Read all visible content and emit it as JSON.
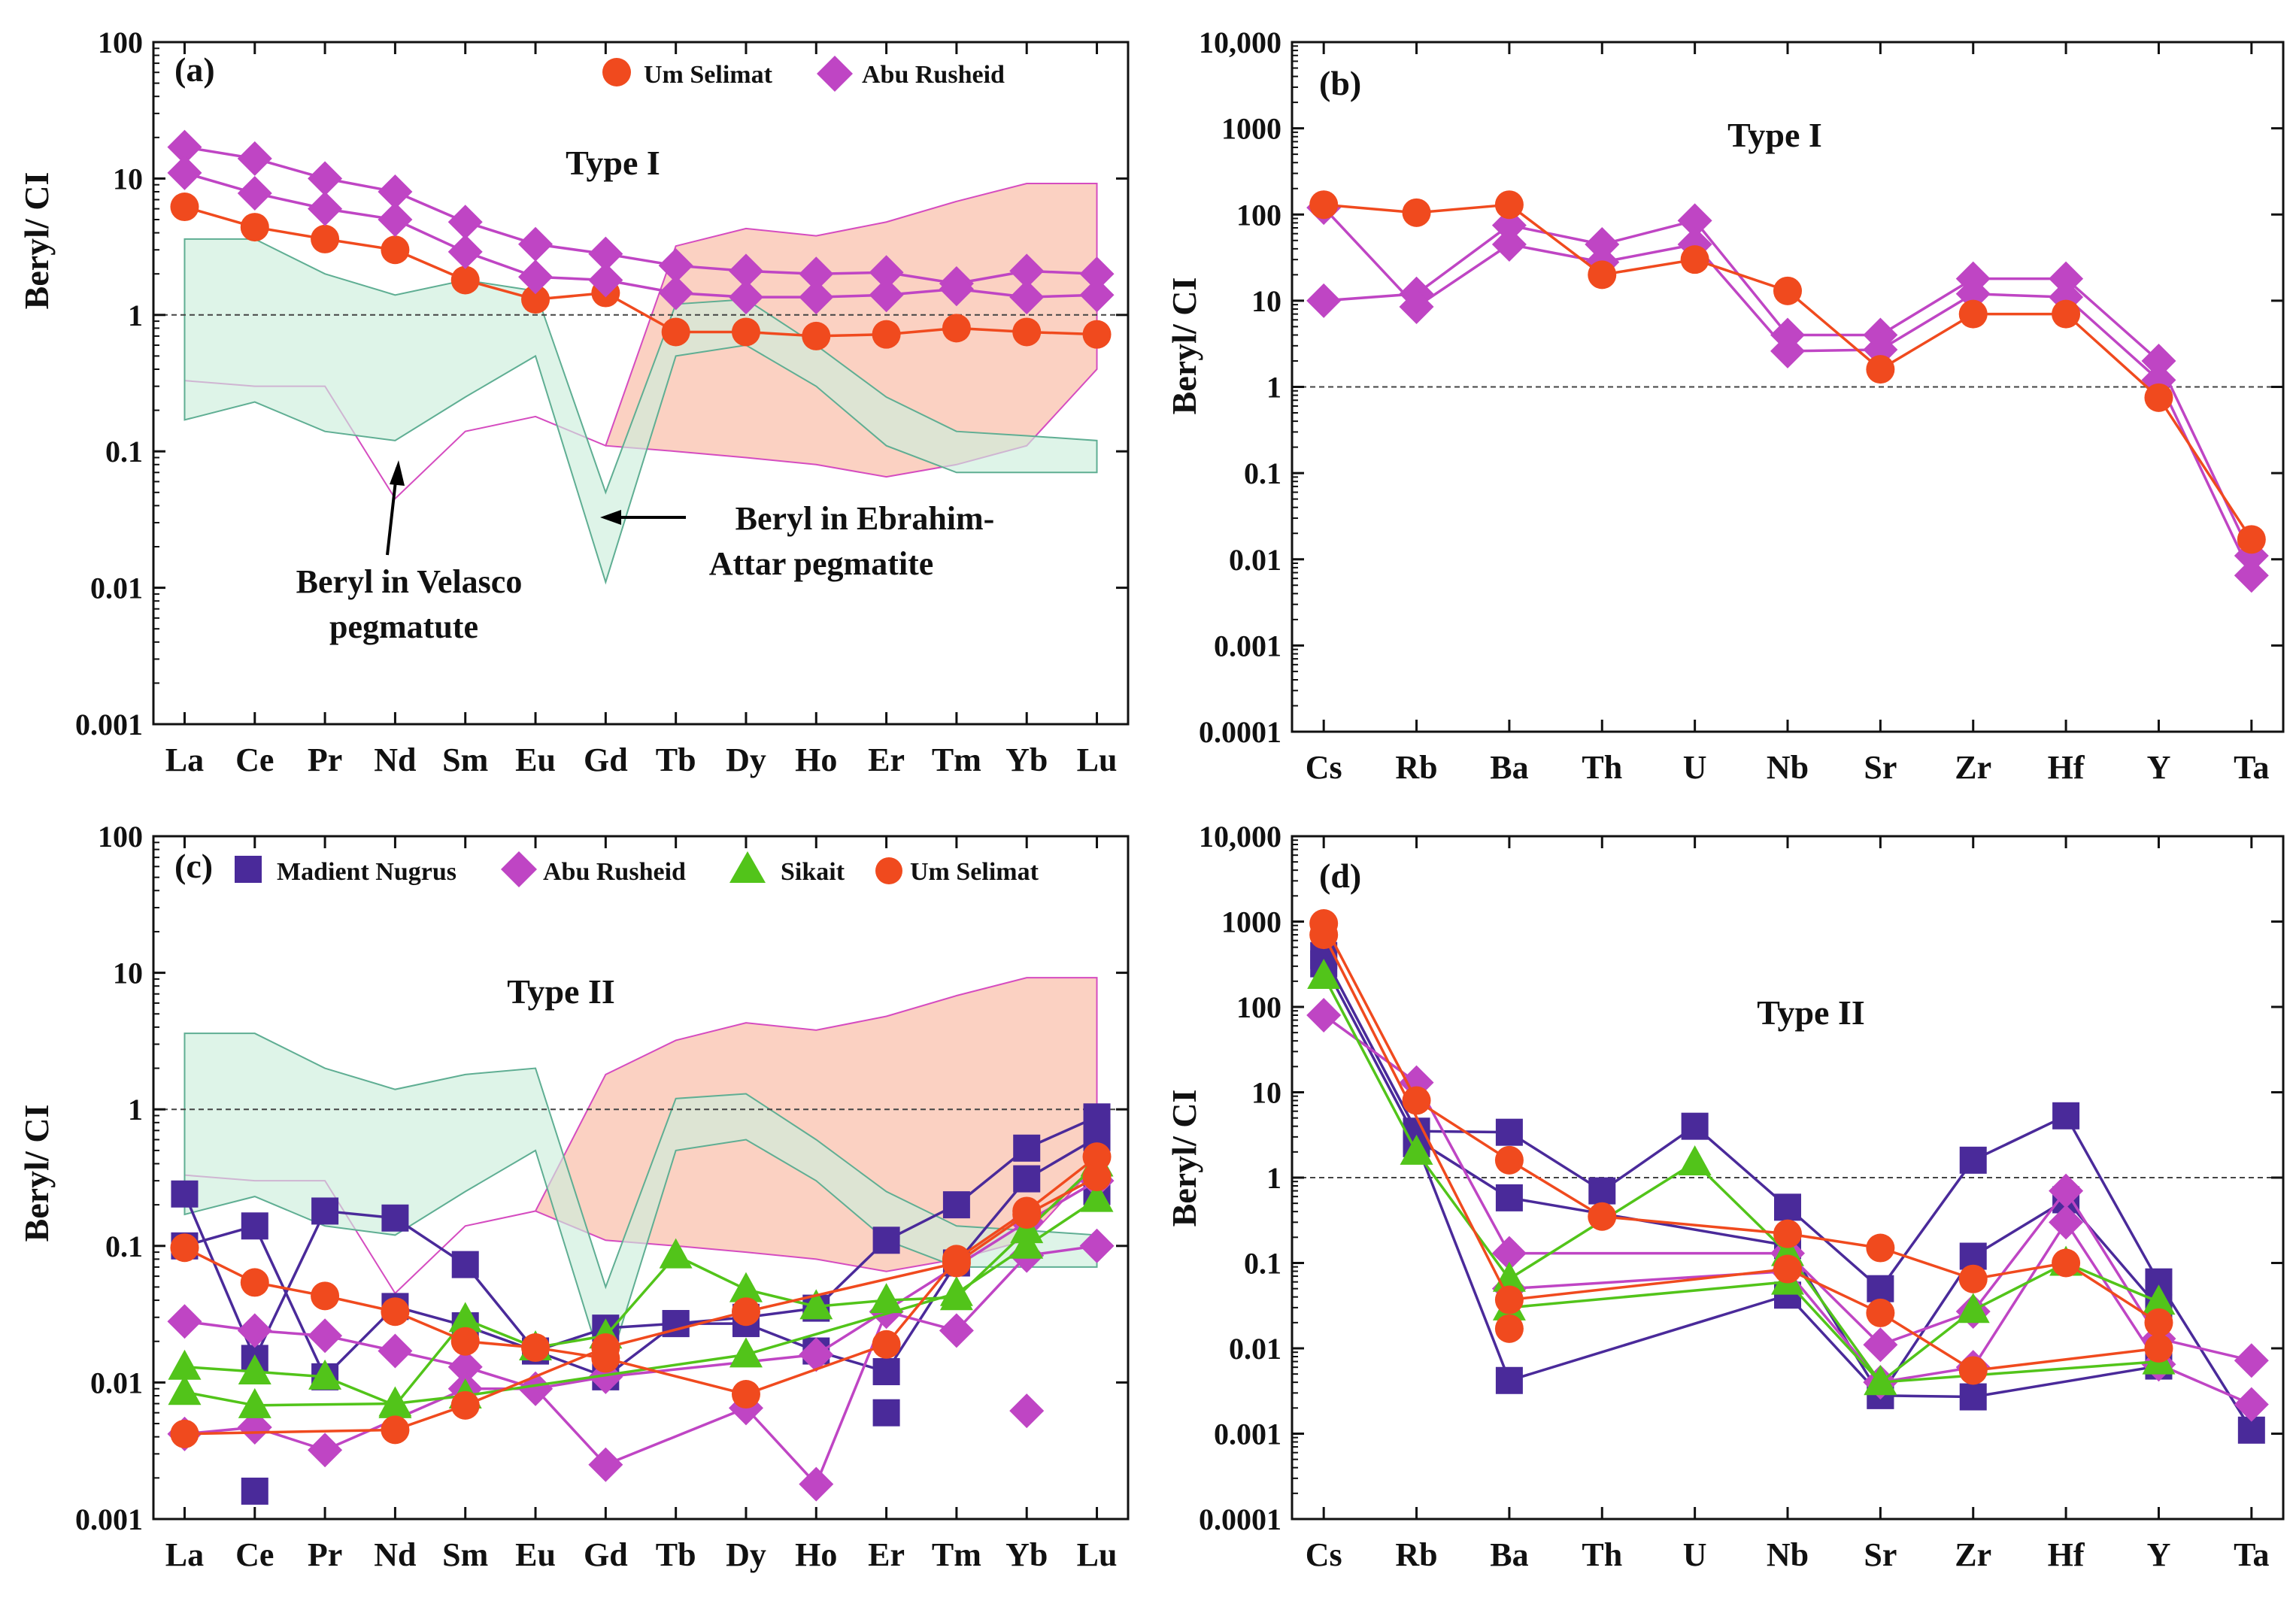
{
  "figure": {
    "colors": {
      "Um Selimat": "#f04a1e",
      "Abu Rusheid": "#bf45c4",
      "Madient Nugrus": "#4a2a9a",
      "Sikait": "#52c41a",
      "velasco_fill": "#f9c1ae",
      "velasco_stroke": "#d54cc0",
      "ebrahim_fill": "#cdeedb",
      "ebrahim_stroke": "#5fae93"
    }
  },
  "chart_data": [
    {
      "id": "a",
      "type": "line",
      "scale": "log",
      "panel_label": "(a)",
      "title": "Type I",
      "ylabel": "Beryl/ CI",
      "ylim": [
        0.001,
        100
      ],
      "yticks": [
        0.001,
        0.01,
        0.1,
        1,
        10,
        100
      ],
      "ytick_labels": [
        "0.001",
        "0.01",
        "0.1",
        "1",
        "10",
        "100"
      ],
      "categories": [
        "La",
        "Ce",
        "Pr",
        "Nd",
        "Sm",
        "Eu",
        "Gd",
        "Tb",
        "Dy",
        "Ho",
        "Er",
        "Tm",
        "Yb",
        "Lu"
      ],
      "reference_line": 1,
      "legend": [
        "Um Selimat",
        "Abu Rusheid"
      ],
      "annotations": [
        {
          "id": "velasco",
          "lines": [
            "Beryl in Velasco",
            "pegmatute"
          ]
        },
        {
          "id": "ebrahim",
          "lines": [
            "Beryl in Ebrahim-",
            "Attar pegmatite"
          ]
        }
      ],
      "fields": [
        {
          "name": "Velasco",
          "upper": [
            0.33,
            0.3,
            0.3,
            0.045,
            0.14,
            0.18,
            0.11,
            3.2,
            4.3,
            3.8,
            4.8,
            6.8,
            9.2,
            9.2
          ],
          "lower": [
            0.33,
            0.3,
            0.3,
            0.045,
            0.14,
            0.18,
            0.11,
            0.1,
            0.09,
            0.08,
            0.065,
            0.08,
            0.11,
            0.4
          ]
        },
        {
          "name": "Ebrahim-Attar",
          "upper": [
            3.6,
            3.6,
            2.0,
            1.4,
            1.8,
            1.5,
            0.05,
            1.2,
            1.3,
            0.6,
            0.25,
            0.14,
            0.13,
            0.12
          ],
          "lower": [
            0.17,
            0.23,
            0.14,
            0.12,
            0.25,
            0.5,
            0.011,
            0.5,
            0.6,
            0.3,
            0.11,
            0.07,
            0.07,
            0.07
          ]
        }
      ],
      "series": [
        {
          "name": "Um Selimat",
          "marker": "circle",
          "connected": true,
          "values": [
            6.2,
            4.4,
            3.6,
            3.0,
            1.8,
            1.3,
            1.45,
            0.75,
            0.75,
            0.7,
            0.72,
            0.8,
            0.75,
            0.72
          ]
        },
        {
          "name": "Abu Rusheid",
          "marker": "diamond",
          "connected": true,
          "values": [
            17,
            14,
            10,
            8,
            4.8,
            3.3,
            2.8,
            2.3,
            2.1,
            2.0,
            2.05,
            1.7,
            2.1,
            2.0
          ]
        },
        {
          "name": "Abu Rusheid",
          "marker": "diamond",
          "connected": true,
          "values": [
            11,
            7.8,
            6.0,
            5.0,
            2.9,
            1.9,
            1.8,
            1.45,
            1.35,
            1.35,
            1.4,
            1.55,
            1.35,
            1.4
          ]
        }
      ]
    },
    {
      "id": "b",
      "type": "line",
      "scale": "log",
      "panel_label": "(b)",
      "title": "Type I",
      "ylabel": "Beryl/ CI",
      "ylim": [
        0.0001,
        10000
      ],
      "yticks": [
        0.0001,
        0.001,
        0.01,
        0.1,
        1,
        10,
        100,
        1000,
        10000
      ],
      "ytick_labels": [
        "0.0001",
        "0.001",
        "0.01",
        "0.1",
        "1",
        "10",
        "100",
        "1000",
        "10,000"
      ],
      "categories": [
        "Cs",
        "Rb",
        "Ba",
        "Th",
        "U",
        "Nb",
        "Sr",
        "Zr",
        "Hf",
        "Y",
        "Ta"
      ],
      "reference_line": 1,
      "legend": [],
      "fields": [],
      "series": [
        {
          "name": "Abu Rusheid",
          "marker": "diamond",
          "connected": true,
          "values": [
            10,
            12,
            75,
            45,
            85,
            4.0,
            4.0,
            18,
            18,
            2.0,
            0.011
          ]
        },
        {
          "name": "Abu Rusheid",
          "marker": "diamond",
          "connected": true,
          "values": [
            120,
            8.5,
            45,
            28,
            45,
            2.6,
            2.7,
            12,
            11,
            1.2,
            0.0065
          ]
        },
        {
          "name": "Um Selimat",
          "marker": "circle",
          "connected": true,
          "values": [
            130,
            105,
            130,
            20,
            30,
            13,
            1.6,
            7.0,
            7.0,
            0.75,
            0.017
          ]
        }
      ]
    },
    {
      "id": "c",
      "type": "line",
      "scale": "log",
      "panel_label": "(c)",
      "title": "Type II",
      "ylabel": "Beryl/ CI",
      "ylim": [
        0.001,
        100
      ],
      "yticks": [
        0.001,
        0.01,
        0.1,
        1,
        10,
        100
      ],
      "ytick_labels": [
        "0.001",
        "0.01",
        "0.1",
        "1",
        "10",
        "100"
      ],
      "categories": [
        "La",
        "Ce",
        "Pr",
        "Nd",
        "Sm",
        "Eu",
        "Gd",
        "Tb",
        "Dy",
        "Ho",
        "Er",
        "Tm",
        "Yb",
        "Lu"
      ],
      "reference_line": 1,
      "legend": [
        "Madient Nugrus",
        "Abu Rusheid",
        "Sikait",
        "Um Selimat"
      ],
      "fields": [
        {
          "name": "Velasco",
          "upper": [
            0.33,
            0.3,
            0.3,
            0.045,
            0.14,
            0.18,
            1.8,
            3.2,
            4.3,
            3.8,
            4.8,
            6.8,
            9.2,
            9.2
          ],
          "lower": [
            0.33,
            0.3,
            0.3,
            0.045,
            0.14,
            0.18,
            0.11,
            0.1,
            0.09,
            0.08,
            0.065,
            0.08,
            0.11,
            0.4
          ]
        },
        {
          "name": "Ebrahim-Attar",
          "upper": [
            3.6,
            3.6,
            2.0,
            1.4,
            1.8,
            2.0,
            0.05,
            1.2,
            1.3,
            0.6,
            0.25,
            0.14,
            0.13,
            0.12
          ],
          "lower": [
            0.17,
            0.23,
            0.14,
            0.12,
            0.25,
            0.5,
            0.011,
            0.5,
            0.6,
            0.3,
            0.11,
            0.07,
            0.07,
            0.07
          ]
        }
      ],
      "series": [
        {
          "name": "Madient Nugrus",
          "marker": "square",
          "connected": true,
          "values": [
            0.24,
            0.015,
            0.18,
            0.16,
            0.073,
            0.017,
            0.025,
            0.027,
            0.03,
            0.035,
            0.11,
            0.2,
            0.52,
            0.88
          ]
        },
        {
          "name": "Madient Nugrus",
          "marker": "square",
          "connected": true,
          "values": [
            0.1,
            0.14,
            0.011,
            0.036,
            0.026,
            0.017,
            0.011,
            0.027,
            0.027,
            0.017,
            0.012,
            0.075,
            0.31,
            0.62
          ]
        },
        {
          "name": "Madient Nugrus",
          "marker": "square",
          "connected": false,
          "values": [
            null,
            0.0016,
            null,
            null,
            null,
            null,
            null,
            null,
            null,
            null,
            0.006,
            null,
            null,
            0.25
          ]
        },
        {
          "name": "Abu Rusheid",
          "marker": "diamond",
          "connected": true,
          "values": [
            0.028,
            0.024,
            0.022,
            0.017,
            0.013,
            0.009,
            0.0025,
            null,
            0.0065,
            0.0018,
            0.033,
            0.024,
            0.085,
            0.1
          ]
        },
        {
          "name": "Abu Rusheid",
          "marker": "diamond",
          "connected": true,
          "values": [
            0.0042,
            0.0047,
            0.0032,
            null,
            0.009,
            0.009,
            0.011,
            null,
            null,
            0.016,
            null,
            null,
            0.15,
            0.3
          ]
        },
        {
          "name": "Abu Rusheid",
          "marker": "diamond",
          "connected": false,
          "values": [
            null,
            null,
            null,
            null,
            null,
            null,
            null,
            null,
            null,
            null,
            null,
            null,
            0.0062,
            null
          ]
        },
        {
          "name": "Sikait",
          "marker": "triangle",
          "connected": true,
          "values": [
            0.013,
            0.012,
            0.011,
            0.0068,
            0.029,
            0.018,
            0.022,
            0.085,
            0.048,
            0.036,
            0.04,
            0.042,
            0.13,
            0.4
          ]
        },
        {
          "name": "Sikait",
          "marker": "triangle",
          "connected": true,
          "values": [
            0.0085,
            0.0068,
            null,
            0.007,
            0.008,
            null,
            null,
            null,
            0.016,
            null,
            null,
            0.045,
            0.1,
            0.22
          ]
        },
        {
          "name": "Um Selimat",
          "marker": "circle",
          "connected": true,
          "values": [
            0.097,
            0.054,
            0.043,
            0.033,
            0.02,
            0.018,
            0.015,
            null,
            0.0082,
            null,
            0.019,
            0.08,
            0.18,
            0.45
          ]
        },
        {
          "name": "Um Selimat",
          "marker": "circle",
          "connected": true,
          "values": [
            0.0042,
            null,
            null,
            0.0045,
            0.0068,
            null,
            0.018,
            null,
            0.033,
            null,
            null,
            0.075,
            0.17,
            0.32
          ]
        }
      ]
    },
    {
      "id": "d",
      "type": "line",
      "scale": "log",
      "panel_label": "(d)",
      "title": "Type II",
      "ylabel": "Beryl/ CI",
      "ylim": [
        0.0001,
        10000
      ],
      "yticks": [
        0.0001,
        0.001,
        0.01,
        0.1,
        1,
        10,
        100,
        1000,
        10000
      ],
      "ytick_labels": [
        "0.0001",
        "0.001",
        "0.01",
        "0.1",
        "1",
        "10",
        "100",
        "1000",
        "10,000"
      ],
      "categories": [
        "Cs",
        "Rb",
        "Ba",
        "Th",
        "U",
        "Nb",
        "Sr",
        "Zr",
        "Hf",
        "Y",
        "Ta"
      ],
      "reference_line": 1,
      "legend": [],
      "fields": [],
      "series": [
        {
          "name": "Madient Nugrus",
          "marker": "square",
          "connected": true,
          "values": [
            400,
            3.5,
            3.4,
            0.7,
            4.0,
            0.45,
            0.05,
            1.6,
            5.3,
            0.06,
            0.0011
          ]
        },
        {
          "name": "Madient Nugrus",
          "marker": "square",
          "connected": true,
          "values": [
            320,
            2.8,
            0.58,
            null,
            null,
            0.16,
            0.0028,
            0.12,
            0.55,
            0.03,
            null
          ]
        },
        {
          "name": "Madient Nugrus",
          "marker": "square",
          "connected": true,
          "values": [
            null,
            2.5,
            0.0042,
            null,
            null,
            0.042,
            0.0028,
            0.0027,
            null,
            0.0062,
            null
          ]
        },
        {
          "name": "Abu Rusheid",
          "marker": "diamond",
          "connected": true,
          "values": [
            80,
            13,
            0.13,
            null,
            null,
            0.13,
            0.011,
            0.027,
            0.7,
            0.013,
            0.0072
          ]
        },
        {
          "name": "Abu Rusheid",
          "marker": "diamond",
          "connected": true,
          "values": [
            null,
            null,
            0.05,
            null,
            null,
            0.08,
            0.004,
            0.006,
            0.3,
            0.0065,
            0.0022
          ]
        },
        {
          "name": "Sikait",
          "marker": "triangle",
          "connected": true,
          "values": [
            230,
            2.0,
            0.065,
            null,
            1.5,
            0.13,
            0.004,
            0.028,
            0.1,
            0.035,
            null
          ]
        },
        {
          "name": "Sikait",
          "marker": "triangle",
          "connected": true,
          "values": [
            null,
            null,
            0.03,
            null,
            null,
            0.06,
            0.004,
            null,
            null,
            0.007,
            null
          ]
        },
        {
          "name": "Um Selimat",
          "marker": "circle",
          "connected": true,
          "values": [
            950,
            8.0,
            1.6,
            0.35,
            null,
            0.22,
            0.15,
            0.065,
            0.1,
            0.02,
            null
          ]
        },
        {
          "name": "Um Selimat",
          "marker": "circle",
          "connected": true,
          "values": [
            700,
            null,
            0.037,
            null,
            null,
            0.085,
            0.026,
            0.0055,
            null,
            0.01,
            null
          ]
        },
        {
          "name": "Um Selimat",
          "marker": "circle",
          "connected": false,
          "values": [
            null,
            null,
            0.017,
            null,
            null,
            null,
            null,
            null,
            null,
            null,
            null
          ]
        }
      ]
    }
  ]
}
